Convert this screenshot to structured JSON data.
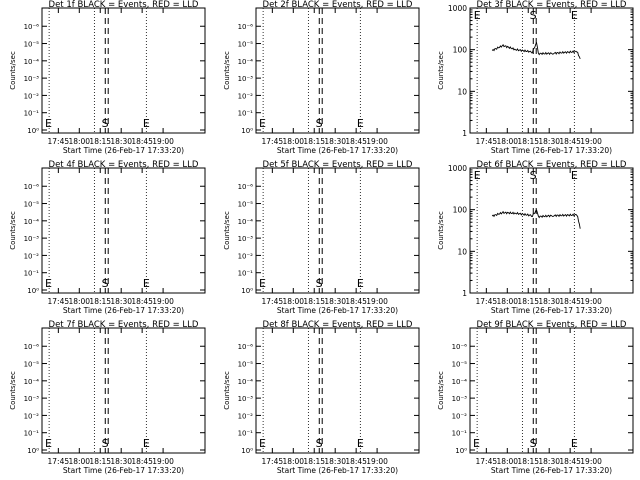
{
  "chart_data": [
    {
      "type": "line",
      "title": "Det 1f BLACK = Events, RED = LLD",
      "ylabel": "Counts/sec",
      "xlabel": "Start Time (26-Feb-17 17:33:20)",
      "scale": "log",
      "ytick_labels": [
        "10⁰",
        "10⁻¹",
        "10⁻²",
        "10⁻³",
        "10⁻⁴",
        "10⁻⁵",
        "10⁻⁶"
      ],
      "xtick_labels": [
        "17:45",
        "18:00",
        "18:15",
        "18:30",
        "18:45",
        "19:00"
      ],
      "marker_labels": [
        "E",
        "S",
        "E"
      ],
      "series": []
    },
    {
      "type": "line",
      "title": "Det 2f BLACK = Events, RED = LLD",
      "ylabel": "Counts/sec",
      "xlabel": "Start Time (26-Feb-17 17:33:20)",
      "scale": "log",
      "ytick_labels": [
        "10⁰",
        "10⁻¹",
        "10⁻²",
        "10⁻³",
        "10⁻⁴",
        "10⁻⁵",
        "10⁻⁶"
      ],
      "xtick_labels": [
        "17:45",
        "18:00",
        "18:15",
        "18:30",
        "18:45",
        "19:00"
      ],
      "marker_labels": [
        "E",
        "S",
        "E"
      ],
      "series": []
    },
    {
      "type": "line",
      "title": "Det 3f BLACK = Events, RED = LLD",
      "ylabel": "Counts/sec",
      "xlabel": "Start Time (26-Feb-17 17:33:20)",
      "scale": "log",
      "ytick_labels": [
        "1",
        "10",
        "100",
        "1000"
      ],
      "xtick_labels": [
        "17:45",
        "18:00",
        "18:15",
        "18:30",
        "18:45",
        "19:00"
      ],
      "marker_labels": [
        "E",
        "S",
        "E"
      ],
      "series": [
        {
          "values": [
            [
              17.82,
              95
            ],
            [
              17.95,
              125
            ],
            [
              18.1,
              100
            ],
            [
              18.3,
              88
            ],
            [
              18.35,
              140
            ],
            [
              18.37,
              80
            ],
            [
              18.55,
              82
            ],
            [
              18.83,
              90
            ],
            [
              18.87,
              60
            ]
          ]
        }
      ]
    },
    {
      "type": "line",
      "title": "Det 4f BLACK = Events, RED = LLD",
      "ylabel": "Counts/sec",
      "xlabel": "Start Time (26-Feb-17 17:33:20)",
      "scale": "log",
      "ytick_labels": [
        "10⁰",
        "10⁻¹",
        "10⁻²",
        "10⁻³",
        "10⁻⁴",
        "10⁻⁵",
        "10⁻⁶"
      ],
      "xtick_labels": [
        "17:45",
        "18:00",
        "18:15",
        "18:30",
        "18:45",
        "19:00"
      ],
      "marker_labels": [
        "E",
        "S",
        "E"
      ],
      "series": []
    },
    {
      "type": "line",
      "title": "Det 5f BLACK = Events, RED = LLD",
      "ylabel": "Counts/sec",
      "xlabel": "Start Time (26-Feb-17 17:33:20)",
      "scale": "log",
      "ytick_labels": [
        "10⁰",
        "10⁻¹",
        "10⁻²",
        "10⁻³",
        "10⁻⁴",
        "10⁻⁵",
        "10⁻⁶"
      ],
      "xtick_labels": [
        "17:45",
        "18:00",
        "18:15",
        "18:30",
        "18:45",
        "19:00"
      ],
      "marker_labels": [
        "E",
        "S",
        "E"
      ],
      "series": []
    },
    {
      "type": "line",
      "title": "Det 6f BLACK = Events, RED = LLD",
      "ylabel": "Counts/sec",
      "xlabel": "Start Time (26-Feb-17 17:33:20)",
      "scale": "log",
      "ytick_labels": [
        "1",
        "10",
        "100",
        "1000"
      ],
      "xtick_labels": [
        "17:45",
        "18:00",
        "18:15",
        "18:30",
        "18:45",
        "19:00"
      ],
      "marker_labels": [
        "E",
        "S",
        "E"
      ],
      "series": [
        {
          "values": [
            [
              17.82,
              70
            ],
            [
              17.95,
              85
            ],
            [
              18.1,
              82
            ],
            [
              18.3,
              72
            ],
            [
              18.35,
              95
            ],
            [
              18.37,
              68
            ],
            [
              18.55,
              72
            ],
            [
              18.83,
              75
            ],
            [
              18.87,
              35
            ]
          ]
        }
      ]
    },
    {
      "type": "line",
      "title": "Det 7f BLACK = Events, RED = LLD",
      "ylabel": "Counts/sec",
      "xlabel": "Start Time (26-Feb-17 17:33:20)",
      "scale": "log",
      "ytick_labels": [
        "10⁰",
        "10⁻¹",
        "10⁻²",
        "10⁻³",
        "10⁻⁴",
        "10⁻⁵",
        "10⁻⁶"
      ],
      "xtick_labels": [
        "17:45",
        "18:00",
        "18:15",
        "18:30",
        "18:45",
        "19:00"
      ],
      "marker_labels": [
        "E",
        "S",
        "E"
      ],
      "series": []
    },
    {
      "type": "line",
      "title": "Det 8f BLACK = Events, RED = LLD",
      "ylabel": "Counts/sec",
      "xlabel": "Start Time (26-Feb-17 17:33:20)",
      "scale": "log",
      "ytick_labels": [
        "10⁰",
        "10⁻¹",
        "10⁻²",
        "10⁻³",
        "10⁻⁴",
        "10⁻⁵",
        "10⁻⁶"
      ],
      "xtick_labels": [
        "17:45",
        "18:00",
        "18:15",
        "18:30",
        "18:45",
        "19:00"
      ],
      "marker_labels": [
        "E",
        "S",
        "E"
      ],
      "series": []
    },
    {
      "type": "line",
      "title": "Det 9f BLACK = Events, RED = LLD",
      "ylabel": "Counts/sec",
      "xlabel": "Start Time (26-Feb-17 17:33:20)",
      "scale": "log",
      "ytick_labels": [
        "10⁰",
        "10⁻¹",
        "10⁻²",
        "10⁻³",
        "10⁻⁴",
        "10⁻⁵",
        "10⁻⁶"
      ],
      "xtick_labels": [
        "17:45",
        "18:00",
        "18:15",
        "18:30",
        "18:45",
        "19:00"
      ],
      "marker_labels": [
        "E",
        "S",
        "E"
      ],
      "series": []
    }
  ]
}
